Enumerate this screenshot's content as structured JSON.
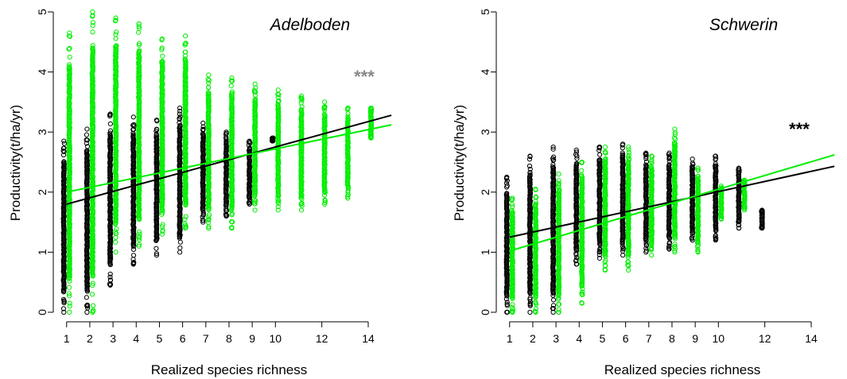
{
  "chart_data": [
    {
      "type": "scatter",
      "title": "Adelboden",
      "xlabel": "Realized species richness",
      "ylabel": "Productivity(t/ha/yr)",
      "xlim": [
        0.7,
        15.2
      ],
      "ylim": [
        0,
        5
      ],
      "x_ticks": [
        1,
        2,
        3,
        4,
        5,
        6,
        7,
        8,
        9,
        10,
        12,
        14
      ],
      "y_ticks": [
        0,
        1,
        2,
        3,
        4,
        5
      ],
      "significance": "***",
      "significance_color": "#888888",
      "grid": false,
      "series": [
        {
          "color": "#000000",
          "offset": -0.12,
          "columns": [
            {
              "x": 1,
              "min": 0.0,
              "max": 2.85
            },
            {
              "x": 2,
              "min": 0.0,
              "max": 3.05
            },
            {
              "x": 3,
              "min": 0.45,
              "max": 3.3
            },
            {
              "x": 4,
              "min": 0.8,
              "max": 3.25
            },
            {
              "x": 5,
              "min": 0.95,
              "max": 3.2
            },
            {
              "x": 6,
              "min": 1.0,
              "max": 3.4
            },
            {
              "x": 7,
              "min": 1.5,
              "max": 3.15
            },
            {
              "x": 8,
              "min": 1.6,
              "max": 3.0
            },
            {
              "x": 9,
              "min": 1.8,
              "max": 2.85
            },
            {
              "x": 10,
              "min": 2.85,
              "max": 2.9
            }
          ],
          "fit": {
            "x": [
              1,
              15
            ],
            "y": [
              1.8,
              3.28
            ]
          }
        },
        {
          "color": "#00ee00",
          "offset": 0.12,
          "columns": [
            {
              "x": 1,
              "min": 0.0,
              "max": 4.65
            },
            {
              "x": 2,
              "min": 0.0,
              "max": 5.0
            },
            {
              "x": 3,
              "min": 1.0,
              "max": 4.9
            },
            {
              "x": 4,
              "min": 1.1,
              "max": 4.8
            },
            {
              "x": 5,
              "min": 1.3,
              "max": 4.55
            },
            {
              "x": 6,
              "min": 1.4,
              "max": 4.6
            },
            {
              "x": 7,
              "min": 1.4,
              "max": 3.95
            },
            {
              "x": 8,
              "min": 1.4,
              "max": 3.9
            },
            {
              "x": 9,
              "min": 1.7,
              "max": 3.8
            },
            {
              "x": 10,
              "min": 1.7,
              "max": 3.7
            },
            {
              "x": 11,
              "min": 1.7,
              "max": 3.6
            },
            {
              "x": 12,
              "min": 1.8,
              "max": 3.5
            },
            {
              "x": 13,
              "min": 1.9,
              "max": 3.4
            },
            {
              "x": 14,
              "min": 2.9,
              "max": 3.4
            }
          ],
          "fit": {
            "x": [
              1,
              15
            ],
            "y": [
              2.0,
              3.12
            ]
          }
        }
      ]
    },
    {
      "type": "scatter",
      "title": "Schwerin",
      "xlabel": "Realized species richness",
      "ylabel": "Productivity(t/ha/yr)",
      "xlim": [
        0.7,
        15.2
      ],
      "ylim": [
        0,
        5
      ],
      "x_ticks": [
        1,
        2,
        3,
        4,
        5,
        6,
        7,
        8,
        9,
        10,
        12,
        14
      ],
      "y_ticks": [
        0,
        1,
        2,
        3,
        4,
        5
      ],
      "significance": "***",
      "significance_color": "#000000",
      "grid": false,
      "series": [
        {
          "color": "#000000",
          "offset": -0.12,
          "columns": [
            {
              "x": 1,
              "min": 0.0,
              "max": 2.25
            },
            {
              "x": 2,
              "min": 0.0,
              "max": 2.6
            },
            {
              "x": 3,
              "min": 0.0,
              "max": 2.75
            },
            {
              "x": 4,
              "min": 0.8,
              "max": 2.7
            },
            {
              "x": 5,
              "min": 0.9,
              "max": 2.75
            },
            {
              "x": 6,
              "min": 0.95,
              "max": 2.8
            },
            {
              "x": 7,
              "min": 1.0,
              "max": 2.65
            },
            {
              "x": 8,
              "min": 1.05,
              "max": 2.65
            },
            {
              "x": 9,
              "min": 1.2,
              "max": 2.55
            },
            {
              "x": 10,
              "min": 1.2,
              "max": 2.6
            },
            {
              "x": 11,
              "min": 1.4,
              "max": 2.4
            },
            {
              "x": 12,
              "min": 1.4,
              "max": 1.7
            }
          ],
          "fit": {
            "x": [
              1,
              15
            ],
            "y": [
              1.25,
              2.43
            ]
          }
        },
        {
          "color": "#00ee00",
          "offset": 0.12,
          "columns": [
            {
              "x": 1,
              "min": 0.0,
              "max": 1.9
            },
            {
              "x": 2,
              "min": 0.0,
              "max": 2.05
            },
            {
              "x": 3,
              "min": 0.0,
              "max": 2.3
            },
            {
              "x": 4,
              "min": 0.15,
              "max": 2.5
            },
            {
              "x": 5,
              "min": 0.7,
              "max": 2.75
            },
            {
              "x": 6,
              "min": 0.7,
              "max": 2.75
            },
            {
              "x": 7,
              "min": 0.95,
              "max": 2.6
            },
            {
              "x": 8,
              "min": 1.0,
              "max": 3.05
            },
            {
              "x": 9,
              "min": 1.0,
              "max": 2.4
            },
            {
              "x": 10,
              "min": 1.55,
              "max": 2.1
            },
            {
              "x": 11,
              "min": 1.7,
              "max": 2.2
            }
          ],
          "fit": {
            "x": [
              1,
              15
            ],
            "y": [
              1.02,
              2.62
            ]
          }
        }
      ]
    }
  ]
}
